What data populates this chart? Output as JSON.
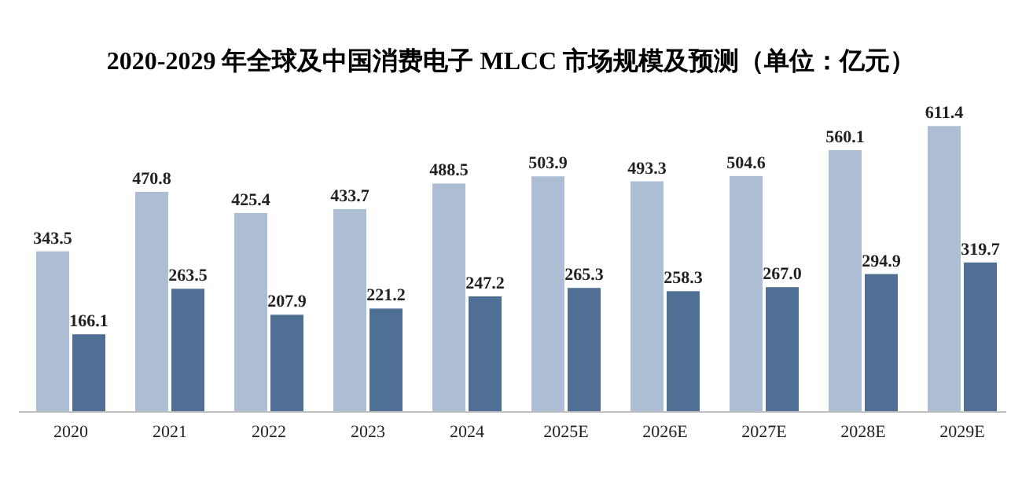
{
  "chart_data": {
    "type": "bar",
    "title": "2020-2029 年全球及中国消费电子 MLCC 市场规模及预测（单位：亿元）",
    "categories": [
      "2020",
      "2021",
      "2022",
      "2023",
      "2024",
      "2025E",
      "2026E",
      "2027E",
      "2028E",
      "2029E"
    ],
    "series": [
      {
        "color": "#adbdd3",
        "values": [
          343.5,
          470.8,
          425.4,
          433.7,
          488.5,
          503.9,
          493.3,
          504.6,
          560.1,
          611.4
        ],
        "value_labels": [
          "343.5",
          "470.8",
          "425.4",
          "433.7",
          "488.5",
          "503.9",
          "493.3",
          "504.6",
          "560.1",
          "611.4"
        ]
      },
      {
        "color": "#4f6f94",
        "values": [
          166.1,
          263.5,
          207.9,
          221.2,
          247.2,
          265.3,
          258.3,
          267.0,
          294.9,
          319.7
        ],
        "value_labels": [
          "166.1",
          "263.5",
          "207.9",
          "221.2",
          "247.2",
          "265.3",
          "258.3",
          "267.0",
          "294.9",
          "319.7"
        ]
      }
    ]
  }
}
